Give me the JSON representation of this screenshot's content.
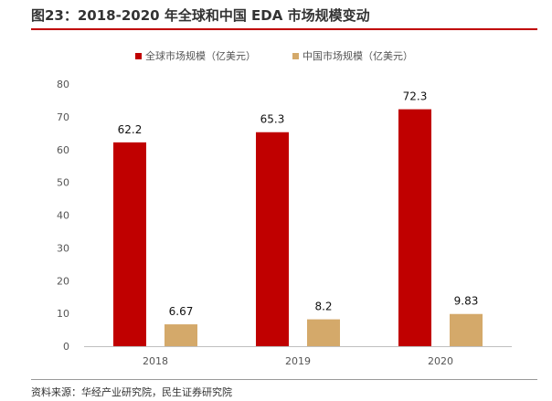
{
  "figure": {
    "title": "图23：2018-2020 年全球和中国 EDA 市场规模变动",
    "source": "资料来源：华经产业研究院，民生证券研究院"
  },
  "colors": {
    "accent": "#c00000",
    "series_global": "#c00000",
    "series_china": "#d4a96a"
  },
  "chart_data": {
    "type": "bar",
    "categories": [
      "2018",
      "2019",
      "2020"
    ],
    "series": [
      {
        "name": "全球市场规模（亿美元）",
        "values": [
          62.2,
          65.3,
          72.3
        ],
        "labels": [
          "62.2",
          "65.3",
          "72.3"
        ]
      },
      {
        "name": "中国市场规模（亿美元）",
        "values": [
          6.67,
          8.2,
          9.83
        ],
        "labels": [
          "6.67",
          "8.2",
          "9.83"
        ]
      }
    ],
    "ylim": [
      0,
      80
    ],
    "yticks": [
      "0",
      "10",
      "20",
      "30",
      "40",
      "50",
      "60",
      "70",
      "80"
    ],
    "legend_position": "top-center",
    "grid": false
  }
}
